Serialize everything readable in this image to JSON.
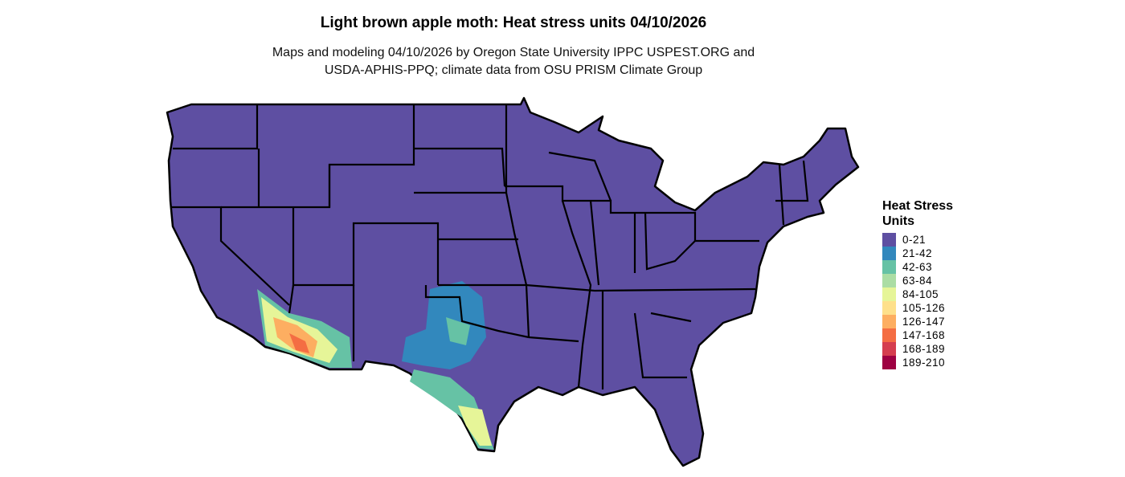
{
  "title": "Light brown apple moth: Heat stress units 04/10/2026",
  "subtitle_line1": "Maps and modeling 04/10/2026 by Oregon State University IPPC USPEST.ORG and",
  "subtitle_line2": "USDA-APHIS-PPQ; climate data from OSU PRISM Climate Group",
  "legend": {
    "title_line1": "Heat Stress",
    "title_line2": "Units",
    "items": [
      {
        "label": "0-21",
        "color": "#5E4FA2"
      },
      {
        "label": "21-42",
        "color": "#3288BD"
      },
      {
        "label": "42-63",
        "color": "#66C2A5"
      },
      {
        "label": "63-84",
        "color": "#ABDDA4"
      },
      {
        "label": "84-105",
        "color": "#E6F598"
      },
      {
        "label": "105-126",
        "color": "#FEE08B"
      },
      {
        "label": "126-147",
        "color": "#FDAE61"
      },
      {
        "label": "147-168",
        "color": "#F46D43"
      },
      {
        "label": "168-189",
        "color": "#D53E4F"
      },
      {
        "label": "189-210",
        "color": "#9E0142"
      }
    ]
  }
}
